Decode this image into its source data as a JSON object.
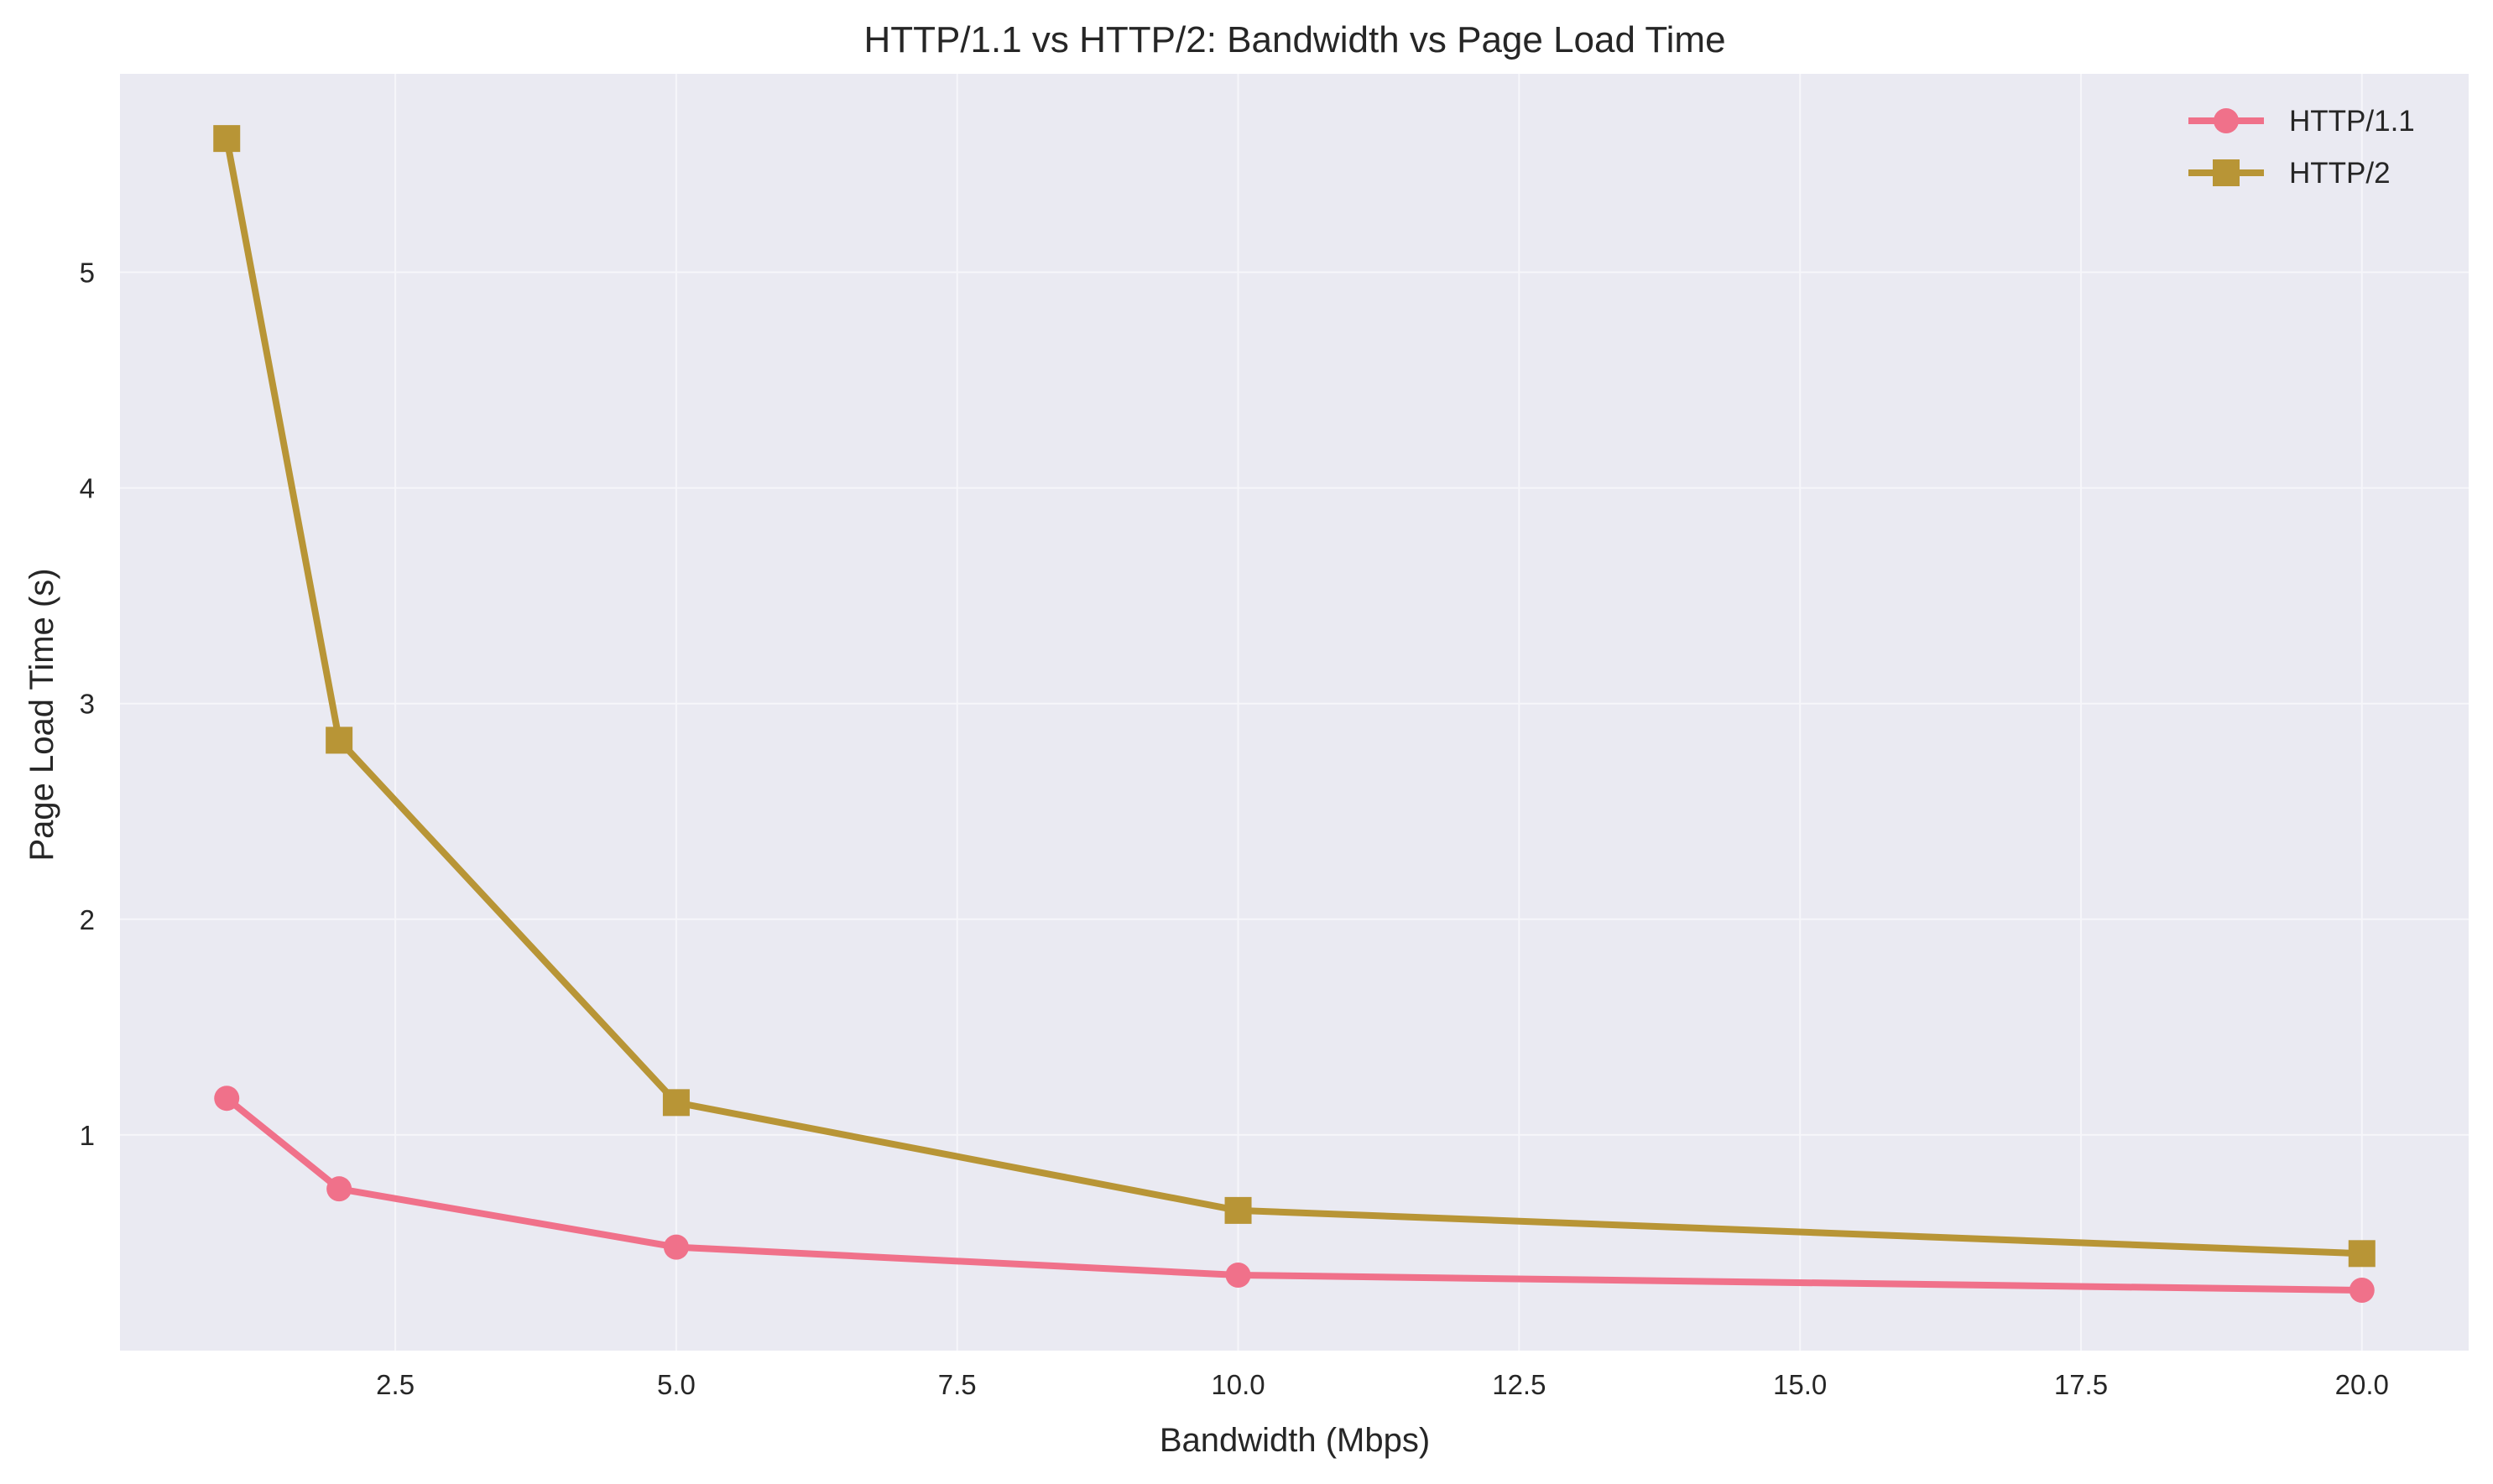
{
  "chart_data": {
    "type": "line",
    "title": "HTTP/1.1 vs HTTP/2: Bandwidth vs Page Load Time",
    "xlabel": "Bandwidth (Mbps)",
    "ylabel": "Page Load Time (s)",
    "x": [
      1,
      2,
      5,
      10,
      20
    ],
    "xlim": [
      0.05,
      20.95
    ],
    "ylim": [
      0.0,
      5.92
    ],
    "xticks": [
      2.5,
      5.0,
      7.5,
      10.0,
      12.5,
      15.0,
      17.5,
      20.0
    ],
    "xtick_labels": [
      "2.5",
      "5.0",
      "7.5",
      "10.0",
      "12.5",
      "15.0",
      "17.5",
      "20.0"
    ],
    "yticks": [
      1,
      2,
      3,
      4,
      5
    ],
    "ytick_labels": [
      "1",
      "2",
      "3",
      "4",
      "5"
    ],
    "grid": true,
    "legend_position": "top-right",
    "plot_background": "#eaeaf2",
    "grid_color": "#f6f6fa",
    "series": [
      {
        "name": "HTTP/1.1",
        "values": [
          1.17,
          0.75,
          0.48,
          0.35,
          0.28
        ],
        "color": "#f0718a",
        "marker": "circle"
      },
      {
        "name": "HTTP/2",
        "values": [
          5.62,
          2.83,
          1.15,
          0.65,
          0.45
        ],
        "color": "#b89536",
        "marker": "square"
      }
    ]
  }
}
